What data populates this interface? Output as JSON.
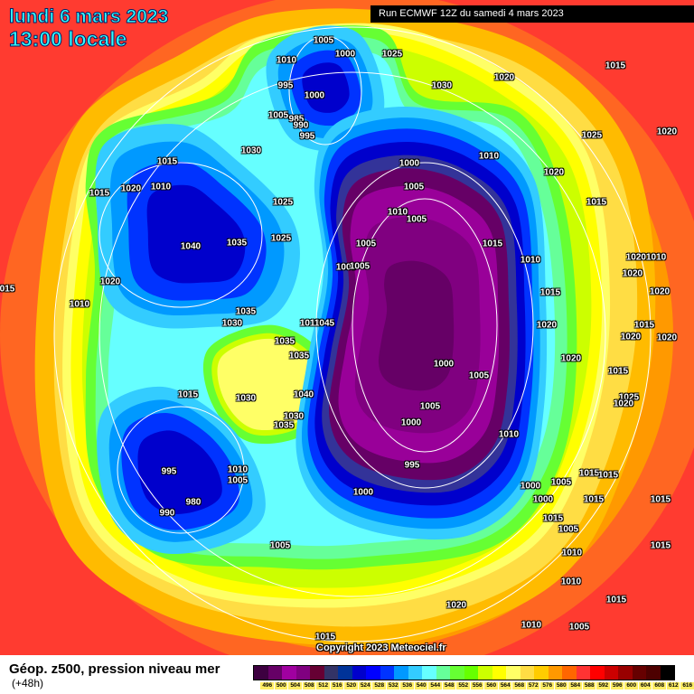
{
  "header": {
    "date": "lundi 6 mars 2023",
    "time": "13:00 locale",
    "run": "Run ECMWF 12Z du samedi 4 mars 2023"
  },
  "map": {
    "copyright": "Copyright 2023 Meteociel.fr",
    "isobar_labels": [
      "1005",
      "1000",
      "1025",
      "1010",
      "995",
      "1000",
      "1030",
      "1020",
      "1015",
      "1005",
      "985",
      "990",
      "995",
      "1030",
      "1025",
      "1020",
      "1010",
      "1000",
      "1015",
      "1020",
      "1010",
      "1015",
      "1005",
      "1020",
      "1025",
      "1010",
      "1005",
      "1015",
      "1040",
      "1035",
      "1025",
      "1005",
      "1015",
      "1010",
      "10201010",
      "1020",
      "1000",
      "1005",
      "1020",
      "1015",
      "1020",
      "1010",
      "1035",
      "1030",
      "1010",
      "1045",
      "1035",
      "1015",
      "1020",
      "1035",
      "1020",
      "1020",
      "1000",
      "1005",
      "1020",
      "1015",
      "1015",
      "1030",
      "1040",
      "1025",
      "1005",
      "1020",
      "1030",
      "1035",
      "1000",
      "1010",
      "995",
      "995",
      "1010",
      "1005",
      "1000",
      "1015",
      "1015",
      "1005",
      "1000",
      "980",
      "990",
      "1000",
      "1015",
      "1015",
      "1015",
      "1005",
      "1010",
      "1005",
      "1015",
      "1010",
      "1015",
      "1020",
      "1015",
      "1010",
      "1005",
      "015"
    ]
  },
  "legend": {
    "title": "Géop. z500, pression niveau mer",
    "subtitle": "(+48h)",
    "colors": [
      "#3d0040",
      "#660066",
      "#a000a0",
      "#800080",
      "#660033",
      "#333366",
      "#003399",
      "#0000cc",
      "#0000ff",
      "#0033ff",
      "#0099ff",
      "#33ccff",
      "#66ffff",
      "#66ff99",
      "#66ff33",
      "#66ff00",
      "#ccff00",
      "#ffff00",
      "#ffff66",
      "#ffdd44",
      "#ffcc00",
      "#ff9900",
      "#ff6600",
      "#ff3333",
      "#ff0000",
      "#cc0000",
      "#990000",
      "#660000",
      "#4d0000",
      "#000000"
    ],
    "ticks": [
      "496",
      "500",
      "504",
      "508",
      "512",
      "516",
      "520",
      "524",
      "528",
      "532",
      "536",
      "540",
      "544",
      "548",
      "552",
      "556",
      "560",
      "564",
      "568",
      "572",
      "576",
      "580",
      "584",
      "588",
      "592",
      "596",
      "600",
      "604",
      "608",
      "612",
      "616"
    ]
  }
}
